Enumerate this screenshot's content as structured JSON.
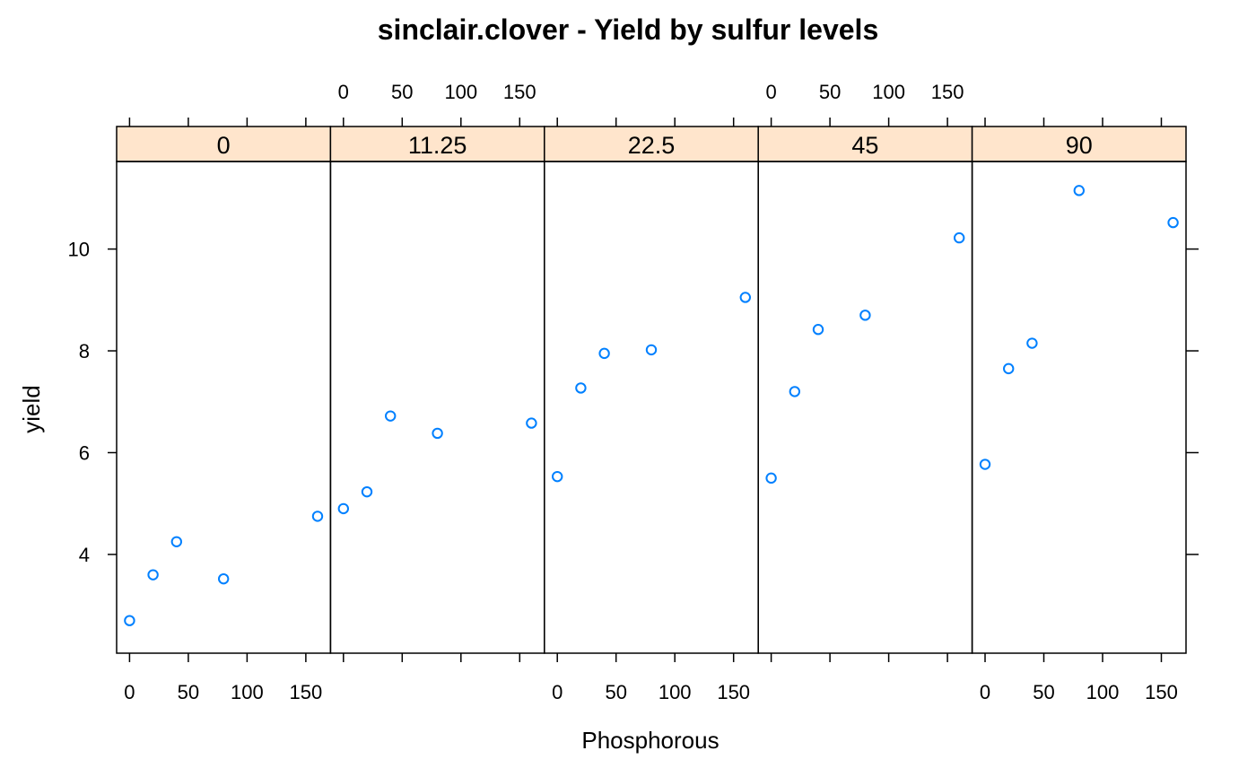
{
  "chart_data": {
    "type": "scatter",
    "title": "sinclair.clover - Yield by sulfur levels",
    "xlabel": "Phosphorous",
    "ylabel": "yield",
    "xlim": [
      -11,
      171
    ],
    "ylim": [
      2.06,
      11.72
    ],
    "x_ticks": [
      0,
      50,
      100,
      150
    ],
    "y_ticks": [
      4,
      6,
      8,
      10
    ],
    "x_tick_labels": [
      "0",
      "50",
      "100",
      "150"
    ],
    "y_tick_labels": [
      "4",
      "6",
      "8",
      "10"
    ],
    "strip_color": "#ffe5cc",
    "point_color": "#0080ff",
    "panels": [
      {
        "label": "0",
        "points": [
          {
            "x": 0,
            "y": 2.7
          },
          {
            "x": 20,
            "y": 3.6
          },
          {
            "x": 40,
            "y": 4.25
          },
          {
            "x": 80,
            "y": 3.52
          },
          {
            "x": 160,
            "y": 4.75
          }
        ]
      },
      {
        "label": "11.25",
        "points": [
          {
            "x": 0,
            "y": 4.9
          },
          {
            "x": 20,
            "y": 5.23
          },
          {
            "x": 40,
            "y": 6.72
          },
          {
            "x": 80,
            "y": 6.38
          },
          {
            "x": 160,
            "y": 6.58
          }
        ]
      },
      {
        "label": "22.5",
        "points": [
          {
            "x": 0,
            "y": 5.53
          },
          {
            "x": 20,
            "y": 7.27
          },
          {
            "x": 40,
            "y": 7.95
          },
          {
            "x": 80,
            "y": 8.02
          },
          {
            "x": 160,
            "y": 9.05
          }
        ]
      },
      {
        "label": "45",
        "points": [
          {
            "x": 0,
            "y": 5.5
          },
          {
            "x": 20,
            "y": 7.2
          },
          {
            "x": 40,
            "y": 8.42
          },
          {
            "x": 80,
            "y": 8.7
          },
          {
            "x": 160,
            "y": 10.22
          }
        ]
      },
      {
        "label": "90",
        "points": [
          {
            "x": 0,
            "y": 5.77
          },
          {
            "x": 20,
            "y": 7.65
          },
          {
            "x": 40,
            "y": 8.15
          },
          {
            "x": 80,
            "y": 11.15
          },
          {
            "x": 160,
            "y": 10.52
          }
        ]
      }
    ]
  }
}
